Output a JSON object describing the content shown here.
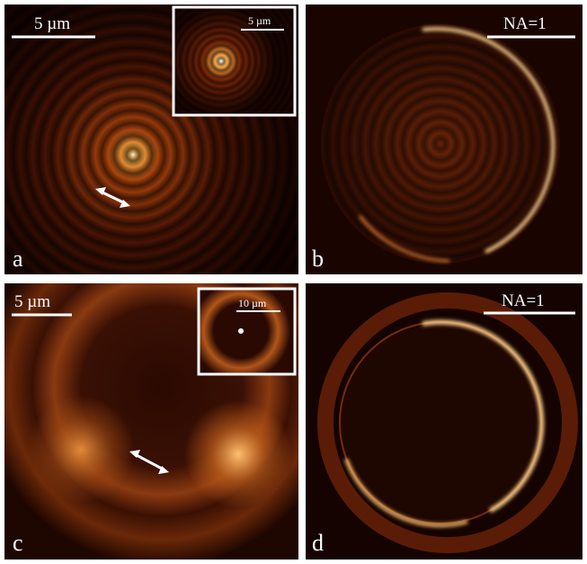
{
  "panels": [
    {
      "label": "a",
      "scale_bar": "5 µm",
      "inset_scale_bar": "5 µm"
    },
    {
      "label": "b",
      "scale_bar": "NA=1"
    },
    {
      "label": "c",
      "scale_bar": "5 µm",
      "inset_scale_bar": "10 µm"
    },
    {
      "label": "d",
      "scale_bar": "NA=1"
    }
  ]
}
